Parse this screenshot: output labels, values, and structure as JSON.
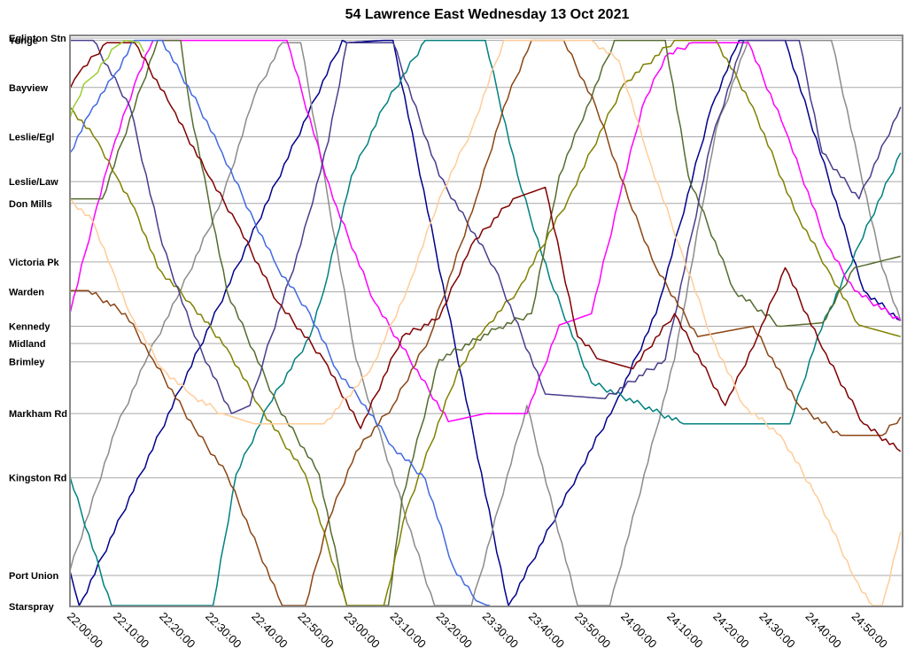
{
  "chart_data": {
    "type": "line",
    "title": "54 Lawrence East Wednesday 13 Oct 2021",
    "x_unit": "minutes after 22:00",
    "xlim": [
      0,
      180
    ],
    "x_ticks": [
      {
        "t": 0,
        "label": "22:00:00"
      },
      {
        "t": 10,
        "label": "22:10:00"
      },
      {
        "t": 20,
        "label": "22:20:00"
      },
      {
        "t": 30,
        "label": "22:30:00"
      },
      {
        "t": 40,
        "label": "22:40:00"
      },
      {
        "t": 50,
        "label": "22:50:00"
      },
      {
        "t": 60,
        "label": "23:00:00"
      },
      {
        "t": 70,
        "label": "23:10:00"
      },
      {
        "t": 80,
        "label": "23:20:00"
      },
      {
        "t": 90,
        "label": "23:30:00"
      },
      {
        "t": 100,
        "label": "23:40:00"
      },
      {
        "t": 110,
        "label": "23:50:00"
      },
      {
        "t": 120,
        "label": "24:00:00"
      },
      {
        "t": 130,
        "label": "24:10:00"
      },
      {
        "t": 140,
        "label": "24:20:00"
      },
      {
        "t": 150,
        "label": "24:30:00"
      },
      {
        "t": 160,
        "label": "24:40:00"
      },
      {
        "t": 170,
        "label": "24:50:00"
      }
    ],
    "stops": [
      {
        "name": "Eglinton Stn",
        "d": 0
      },
      {
        "name": "Yonge",
        "d": 0.1
      },
      {
        "name": "Bayview",
        "d": 2.15
      },
      {
        "name": "Leslie/Egl",
        "d": 4.3
      },
      {
        "name": "Leslie/Law",
        "d": 6.25
      },
      {
        "name": "Don Mills",
        "d": 7.2
      },
      {
        "name": "Victoria Pk",
        "d": 9.75
      },
      {
        "name": "Warden",
        "d": 11.05
      },
      {
        "name": "Kennedy",
        "d": 12.55
      },
      {
        "name": "Midland",
        "d": 13.3
      },
      {
        "name": "Brimley",
        "d": 14.1
      },
      {
        "name": "Markham Rd",
        "d": 16.35
      },
      {
        "name": "Kingston Rd",
        "d": 19.15
      },
      {
        "name": "Port Union",
        "d": 23.4
      },
      {
        "name": "Starspray",
        "d": 24.75
      }
    ],
    "ylim": [
      0,
      24.75
    ],
    "trips": [
      {
        "color": "#00008b",
        "points": [
          [
            0,
            23.2
          ],
          [
            1,
            24
          ],
          [
            2,
            24.75
          ],
          [
            59,
            0.1
          ],
          [
            60,
            0.2
          ],
          [
            68,
            0.1
          ],
          [
            70,
            0.1
          ],
          [
            95,
            24.75
          ],
          [
            110,
            19
          ],
          [
            118,
            16
          ],
          [
            127,
            12
          ],
          [
            139,
            3
          ],
          [
            145,
            0.1
          ],
          [
            155,
            0.1
          ],
          [
            172,
            11
          ],
          [
            180,
            12.3
          ]
        ]
      },
      {
        "color": "#8b8b8b",
        "points": [
          [
            0,
            23.2
          ],
          [
            10,
            17
          ],
          [
            17,
            13.8
          ],
          [
            24,
            11
          ],
          [
            33,
            7
          ],
          [
            40,
            2.5
          ],
          [
            46,
            0.2
          ],
          [
            50,
            0.2
          ],
          [
            62,
            14
          ],
          [
            79,
            24.75
          ],
          [
            87,
            24.75
          ],
          [
            99,
            16
          ],
          [
            110,
            24.75
          ],
          [
            117,
            24.75
          ],
          [
            131,
            14
          ],
          [
            140,
            4
          ],
          [
            147,
            0.1
          ],
          [
            165,
            0.1
          ],
          [
            176,
            10
          ],
          [
            180,
            12.3
          ]
        ]
      },
      {
        "color": "#008080",
        "points": [
          [
            0,
            19.1
          ],
          [
            9,
            24.75
          ],
          [
            31,
            24.75
          ],
          [
            36,
            19
          ],
          [
            43,
            16
          ],
          [
            52,
            13
          ],
          [
            55,
            11
          ],
          [
            61,
            6
          ],
          [
            68,
            3
          ],
          [
            77,
            0.1
          ],
          [
            90,
            0.1
          ],
          [
            97,
            6
          ],
          [
            104,
            10.5
          ],
          [
            113,
            15
          ],
          [
            133,
            16.8
          ],
          [
            156,
            16.8
          ],
          [
            162,
            13
          ],
          [
            171,
            9
          ],
          [
            180,
            5
          ]
        ]
      },
      {
        "color": "#ff00ff",
        "points": [
          [
            0,
            12
          ],
          [
            5,
            8
          ],
          [
            9,
            5
          ],
          [
            14,
            2
          ],
          [
            18,
            0.1
          ],
          [
            47,
            0.1
          ],
          [
            57,
            7
          ],
          [
            66,
            11.5
          ],
          [
            82,
            16.7
          ],
          [
            90,
            16.35
          ],
          [
            99,
            16.35
          ],
          [
            106,
            12.5
          ],
          [
            113,
            12
          ],
          [
            119,
            7
          ],
          [
            124,
            3
          ],
          [
            129,
            0.8
          ],
          [
            135,
            0.2
          ],
          [
            147,
            0.2
          ],
          [
            155,
            4
          ],
          [
            164,
            9
          ],
          [
            170,
            11
          ],
          [
            180,
            12.3
          ]
        ]
      },
      {
        "color": "#556b2f",
        "points": [
          [
            0,
            7
          ],
          [
            7,
            7
          ],
          [
            19,
            0.1
          ],
          [
            24,
            0.1
          ],
          [
            26,
            3
          ],
          [
            34,
            11
          ],
          [
            45,
            16
          ],
          [
            54,
            19
          ],
          [
            60,
            24.75
          ],
          [
            69,
            24.75
          ],
          [
            72,
            20
          ],
          [
            80,
            14
          ],
          [
            93,
            12.6
          ],
          [
            100,
            12
          ],
          [
            106,
            6
          ],
          [
            112,
            3
          ],
          [
            118,
            0.1
          ],
          [
            129,
            0.1
          ],
          [
            134,
            6
          ],
          [
            144,
            11
          ],
          [
            154,
            12.55
          ],
          [
            163,
            12.4
          ],
          [
            170,
            10
          ],
          [
            180,
            9.5
          ]
        ]
      },
      {
        "color": "#808000",
        "points": [
          [
            0,
            3
          ],
          [
            6,
            4.5
          ],
          [
            10,
            6
          ],
          [
            14,
            7.4
          ],
          [
            19,
            10
          ],
          [
            26,
            11.5
          ],
          [
            34,
            13.5
          ],
          [
            41,
            16
          ],
          [
            51,
            19
          ],
          [
            60,
            24.75
          ],
          [
            68,
            24.75
          ],
          [
            73,
            20.5
          ],
          [
            84,
            14.5
          ],
          [
            90,
            12.6
          ],
          [
            97,
            11
          ],
          [
            108,
            7
          ],
          [
            120,
            2
          ],
          [
            131,
            0.1
          ],
          [
            140,
            0.1
          ],
          [
            148,
            3
          ],
          [
            157,
            7.5
          ],
          [
            164,
            10
          ],
          [
            171,
            12.5
          ],
          [
            180,
            13
          ]
        ]
      },
      {
        "color": "#483d8b",
        "points": [
          [
            0,
            0.1
          ],
          [
            5,
            0.1
          ],
          [
            13,
            3
          ],
          [
            20,
            9
          ],
          [
            27,
            13
          ],
          [
            35,
            16.35
          ],
          [
            39,
            16
          ],
          [
            42,
            14
          ],
          [
            50,
            9
          ],
          [
            56,
            4.5
          ],
          [
            60,
            0.2
          ],
          [
            70,
            0.2
          ],
          [
            80,
            6
          ],
          [
            92,
            10
          ],
          [
            103,
            15.5
          ],
          [
            116,
            15.7
          ],
          [
            129,
            14
          ],
          [
            139,
            4.5
          ],
          [
            146,
            0.1
          ],
          [
            158,
            0.1
          ],
          [
            163,
            5
          ],
          [
            171,
            7
          ],
          [
            180,
            3
          ]
        ]
      },
      {
        "color": "#8b4513",
        "points": [
          [
            0,
            11
          ],
          [
            4,
            11
          ],
          [
            12,
            12
          ],
          [
            18,
            14
          ],
          [
            27,
            17
          ],
          [
            34,
            19
          ],
          [
            46,
            24.75
          ],
          [
            51,
            24.75
          ],
          [
            56,
            21
          ],
          [
            62,
            18
          ],
          [
            70,
            16
          ],
          [
            78,
            13
          ],
          [
            88,
            7
          ],
          [
            94,
            3
          ],
          [
            100,
            0.1
          ],
          [
            107,
            0.1
          ],
          [
            114,
            3
          ],
          [
            121,
            7
          ],
          [
            127,
            10
          ],
          [
            136,
            13
          ],
          [
            148,
            12.55
          ],
          [
            158,
            16
          ],
          [
            167,
            17.3
          ],
          [
            176,
            17.3
          ],
          [
            180,
            16.5
          ]
        ]
      },
      {
        "color": "#800000",
        "points": [
          [
            0,
            2.2
          ],
          [
            2,
            1.5
          ],
          [
            8,
            0.2
          ],
          [
            14,
            0.2
          ],
          [
            22,
            3
          ],
          [
            30,
            6
          ],
          [
            36,
            8
          ],
          [
            45,
            11.5
          ],
          [
            55,
            14
          ],
          [
            63,
            17
          ],
          [
            72,
            13
          ],
          [
            80,
            12.2
          ],
          [
            87,
            9
          ],
          [
            96,
            7
          ],
          [
            103,
            6.5
          ],
          [
            110,
            13
          ],
          [
            115,
            14
          ],
          [
            122,
            14.4
          ],
          [
            131,
            12
          ],
          [
            142,
            16
          ],
          [
            149,
            13
          ],
          [
            155,
            10
          ],
          [
            163,
            13.5
          ],
          [
            172,
            16.8
          ],
          [
            180,
            18
          ]
        ]
      },
      {
        "color": "#4169e1",
        "points": [
          [
            0,
            5
          ],
          [
            5,
            3
          ],
          [
            10,
            1.5
          ],
          [
            14,
            0.1
          ],
          [
            20,
            0.1
          ],
          [
            28,
            3
          ],
          [
            33,
            5
          ],
          [
            40,
            8
          ],
          [
            45,
            10
          ],
          [
            52,
            12
          ],
          [
            58,
            14.5
          ],
          [
            64,
            16
          ],
          [
            70,
            17.8
          ],
          [
            77,
            19.2
          ],
          [
            83,
            23
          ],
          [
            88,
            24.5
          ],
          [
            91,
            24.75
          ]
        ]
      },
      {
        "color": "#ffcc99",
        "points": [
          [
            0,
            7
          ],
          [
            5,
            8
          ],
          [
            9,
            10
          ],
          [
            13,
            12
          ],
          [
            20,
            14.4
          ],
          [
            26,
            15.5
          ],
          [
            33,
            16.35
          ],
          [
            40,
            16.8
          ],
          [
            55,
            16.8
          ],
          [
            65,
            14.5
          ],
          [
            73,
            11
          ],
          [
            80,
            7
          ],
          [
            87,
            4
          ],
          [
            94,
            0.1
          ],
          [
            113,
            0.1
          ],
          [
            119,
            1
          ],
          [
            125,
            5
          ],
          [
            132,
            9
          ],
          [
            139,
            13
          ],
          [
            146,
            16
          ],
          [
            154,
            17.3
          ],
          [
            162,
            20
          ],
          [
            170,
            23.5
          ],
          [
            174,
            24.75
          ],
          [
            176,
            24.75
          ],
          [
            180,
            21.5
          ]
        ]
      },
      {
        "color": "#9acd32",
        "points": [
          [
            0,
            3.5
          ],
          [
            3,
            2
          ],
          [
            6,
            1.5
          ],
          [
            9,
            0.5
          ],
          [
            12,
            0.1
          ],
          [
            15,
            0.2
          ],
          [
            16,
            0.6
          ]
        ]
      }
    ]
  }
}
